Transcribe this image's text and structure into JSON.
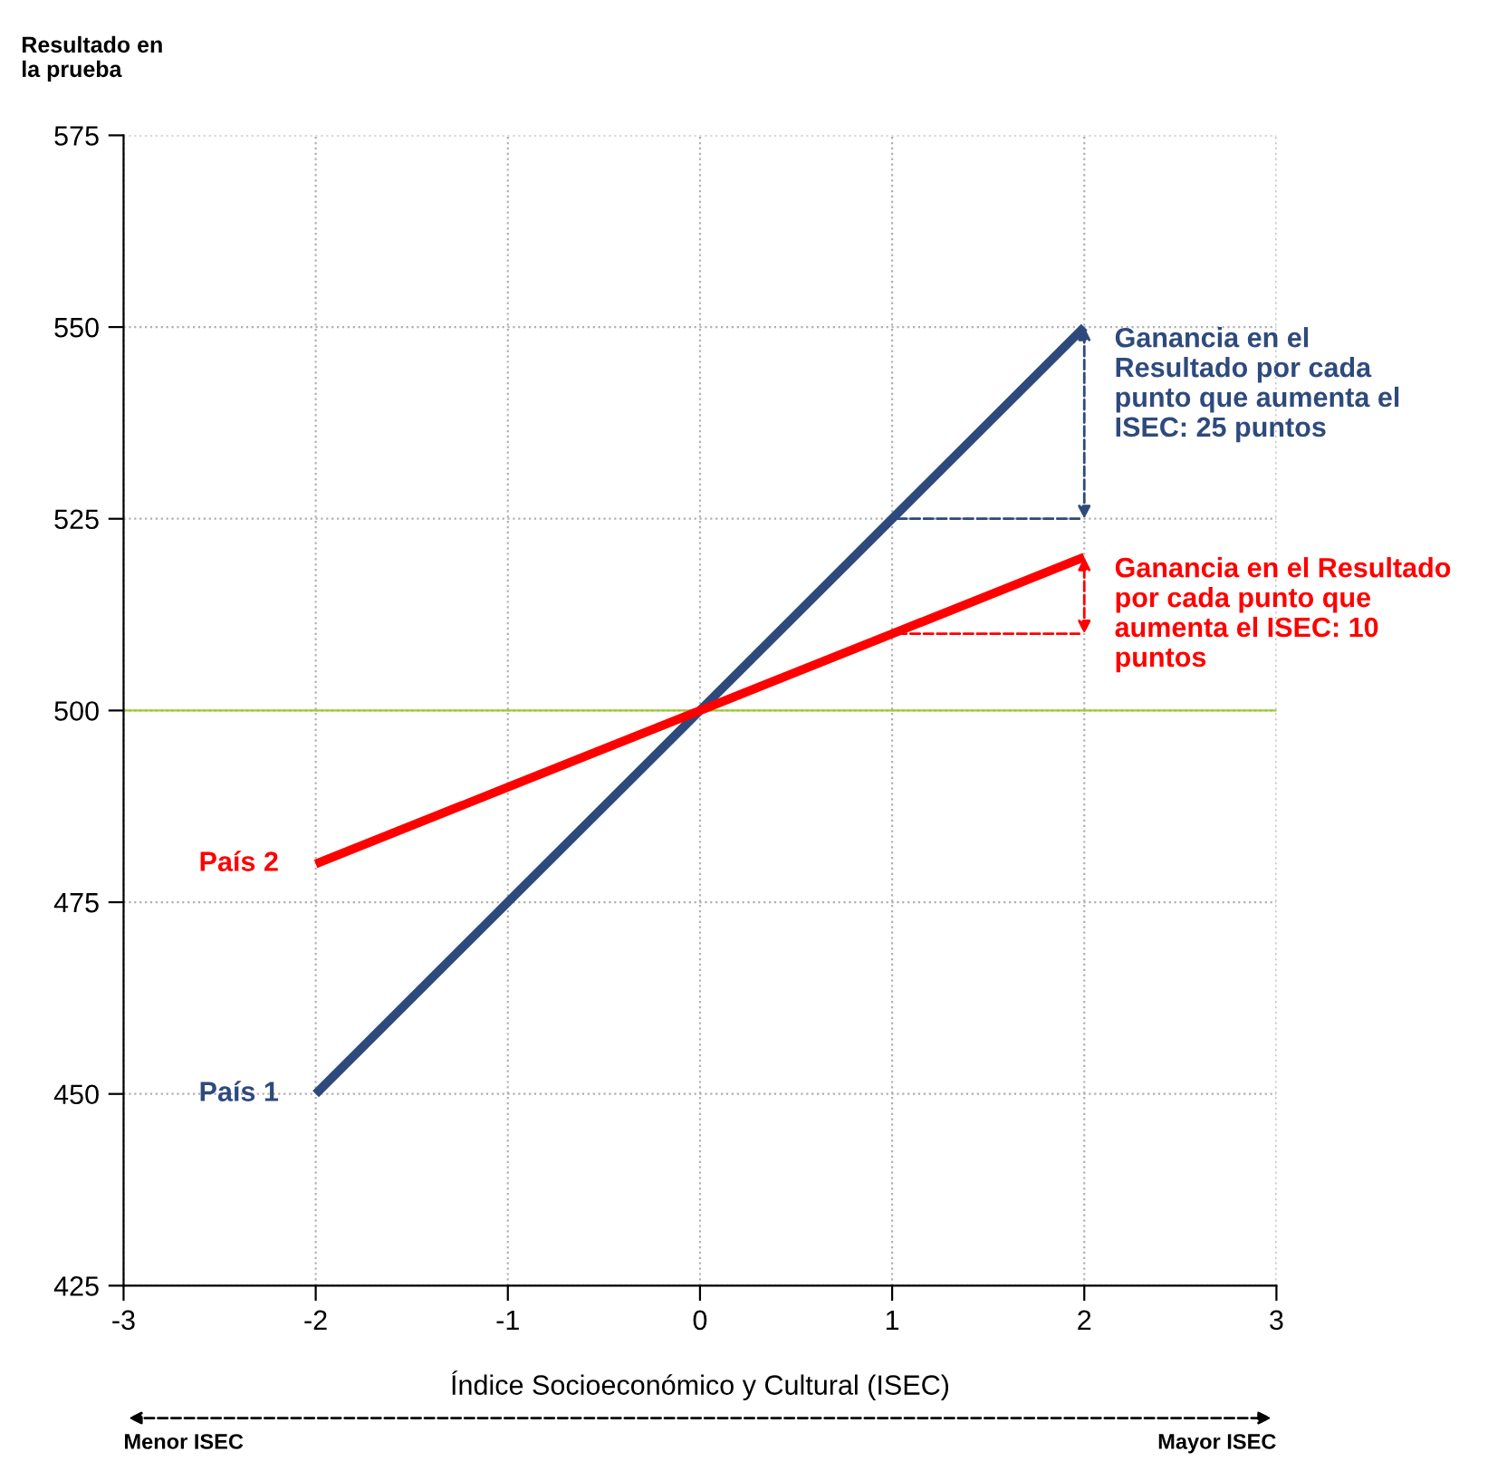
{
  "chart_data": {
    "type": "line",
    "xlabel": "Índice Socioeconómico y Cultural (ISEC)",
    "ylabel": "Resultado en\nla prueba",
    "x": [
      -2,
      -1,
      0,
      1,
      2
    ],
    "series": [
      {
        "name": "País 1",
        "color": "#2e4a7d",
        "values": [
          450,
          475,
          500,
          525,
          550
        ]
      },
      {
        "name": "País 2",
        "color": "#ff0000",
        "values": [
          480,
          490,
          500,
          510,
          520
        ]
      }
    ],
    "xlim": [
      -3,
      3
    ],
    "xticks": [
      -3,
      -2,
      -1,
      0,
      1,
      2,
      3
    ],
    "ylim": [
      425,
      575
    ],
    "yticks": [
      425,
      450,
      475,
      500,
      525,
      550,
      575
    ],
    "grid": true,
    "ref_lines": [
      {
        "axis": "y",
        "value": 500,
        "color": "#99cc33"
      }
    ],
    "annotations": [
      {
        "text": "Ganancia en el\nResultado por cada\npunto que aumenta el\nISEC: 25 puntos",
        "x": 2,
        "y": 550
      },
      {
        "text": "Ganancia en el Resultado\npor cada punto que\naumenta el ISEC: 10\npuntos",
        "x": 2,
        "y": 520
      },
      "Menor ISEC",
      "Mayor ISEC"
    ]
  }
}
